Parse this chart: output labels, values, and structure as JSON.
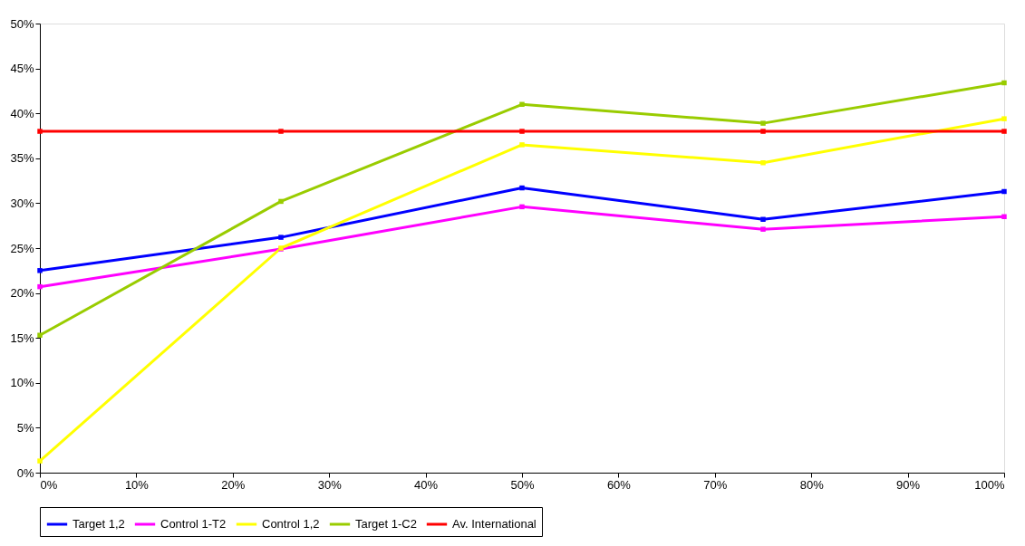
{
  "chart_data": {
    "type": "line",
    "x": [
      0,
      25,
      50,
      75,
      100
    ],
    "series": [
      {
        "name": "Target 1,2",
        "color": "#0000ff",
        "values": [
          22.5,
          26.2,
          31.7,
          28.2,
          31.3
        ]
      },
      {
        "name": "Control 1-T2",
        "color": "#ff00ff",
        "values": [
          20.7,
          24.9,
          29.6,
          27.1,
          28.5
        ]
      },
      {
        "name": "Control 1,2",
        "color": "#ffff00",
        "values": [
          1.3,
          25,
          36.5,
          34.5,
          39.4
        ]
      },
      {
        "name": "Target 1-C2",
        "color": "#99cc00",
        "values": [
          15.3,
          30.2,
          41,
          38.9,
          43.4
        ]
      },
      {
        "name": "Av. International",
        "color": "#ff0000",
        "values": [
          38,
          38,
          38,
          38,
          38
        ]
      }
    ],
    "xlim": [
      0,
      100
    ],
    "xticks": [
      {
        "value": 0,
        "label": "0%"
      },
      {
        "value": 10,
        "label": "10%"
      },
      {
        "value": 20,
        "label": "20%"
      },
      {
        "value": 30,
        "label": "30%"
      },
      {
        "value": 40,
        "label": "40%"
      },
      {
        "value": 50,
        "label": "50%"
      },
      {
        "value": 60,
        "label": "60%"
      },
      {
        "value": 70,
        "label": "70%"
      },
      {
        "value": 80,
        "label": "80%"
      },
      {
        "value": 90,
        "label": "90%"
      },
      {
        "value": 100,
        "label": "100%"
      }
    ],
    "ylim": [
      0,
      50
    ],
    "yticks": [
      {
        "value": 0,
        "label": "0%"
      },
      {
        "value": 5,
        "label": "5%"
      },
      {
        "value": 10,
        "label": "10%"
      },
      {
        "value": 15,
        "label": "15%"
      },
      {
        "value": 20,
        "label": "20%"
      },
      {
        "value": 25,
        "label": "25%"
      },
      {
        "value": 30,
        "label": "30%"
      },
      {
        "value": 35,
        "label": "35%"
      },
      {
        "value": 40,
        "label": "40%"
      },
      {
        "value": 45,
        "label": "45%"
      },
      {
        "value": 50,
        "label": "50%"
      }
    ],
    "grid": false,
    "legend": "bottom",
    "marker": "square",
    "line_style": "solid"
  }
}
